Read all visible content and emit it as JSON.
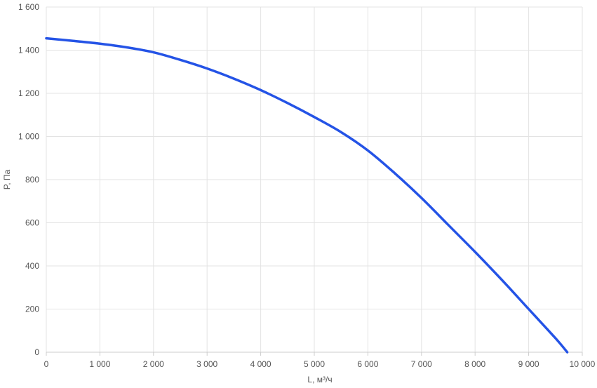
{
  "chart_data": {
    "type": "line",
    "title": "",
    "xlabel": "L, м³/ч",
    "ylabel": "P, Па",
    "xlim": [
      0,
      10000
    ],
    "ylim": [
      0,
      1600
    ],
    "x_ticks": [
      0,
      1000,
      2000,
      3000,
      4000,
      5000,
      6000,
      7000,
      8000,
      9000,
      10000
    ],
    "y_ticks": [
      0,
      200,
      400,
      600,
      800,
      1000,
      1200,
      1400,
      1600
    ],
    "x_tick_labels": [
      "0",
      "1 000",
      "2 000",
      "3 000",
      "4 000",
      "5 000",
      "6 000",
      "7 000",
      "8 000",
      "9 000",
      "10 000"
    ],
    "y_tick_labels": [
      "0",
      "200",
      "400",
      "600",
      "800",
      "1 000",
      "1 200",
      "1 400",
      "1 600"
    ],
    "grid": true,
    "legend": "none",
    "series": [
      {
        "color": "#2453e6",
        "x": [
          0,
          500,
          1000,
          1500,
          2000,
          2500,
          3000,
          3500,
          4000,
          4500,
          5000,
          5500,
          6000,
          6500,
          7000,
          7500,
          8000,
          8500,
          9000,
          9500,
          9720
        ],
        "y": [
          1455,
          1443,
          1430,
          1413,
          1390,
          1355,
          1315,
          1268,
          1215,
          1155,
          1090,
          1020,
          935,
          830,
          715,
          590,
          465,
          335,
          200,
          65,
          0
        ]
      }
    ]
  }
}
